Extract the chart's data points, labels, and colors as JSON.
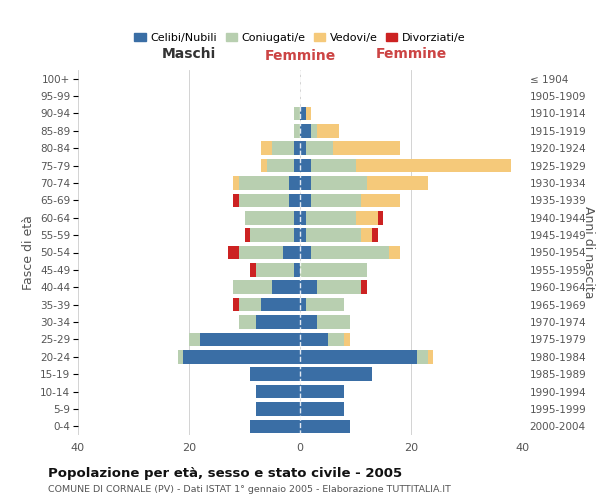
{
  "age_groups": [
    "0-4",
    "5-9",
    "10-14",
    "15-19",
    "20-24",
    "25-29",
    "30-34",
    "35-39",
    "40-44",
    "45-49",
    "50-54",
    "55-59",
    "60-64",
    "65-69",
    "70-74",
    "75-79",
    "80-84",
    "85-89",
    "90-94",
    "95-99",
    "100+"
  ],
  "birth_years": [
    "2000-2004",
    "1995-1999",
    "1990-1994",
    "1985-1989",
    "1980-1984",
    "1975-1979",
    "1970-1974",
    "1965-1969",
    "1960-1964",
    "1955-1959",
    "1950-1954",
    "1945-1949",
    "1940-1944",
    "1935-1939",
    "1930-1934",
    "1925-1929",
    "1920-1924",
    "1915-1919",
    "1910-1914",
    "1905-1909",
    "≤ 1904"
  ],
  "colors": {
    "celibi": "#3a6ea5",
    "coniugati": "#b8cfb0",
    "vedovi": "#f5c97a",
    "divorziati": "#cc2222"
  },
  "maschi": {
    "celibi": [
      9,
      8,
      8,
      9,
      21,
      18,
      8,
      7,
      5,
      1,
      3,
      1,
      1,
      2,
      2,
      1,
      1,
      0,
      0,
      0,
      0
    ],
    "coniugati": [
      0,
      0,
      0,
      0,
      1,
      2,
      3,
      4,
      7,
      7,
      8,
      8,
      9,
      9,
      9,
      5,
      4,
      1,
      1,
      0,
      0
    ],
    "vedovi": [
      0,
      0,
      0,
      0,
      0,
      0,
      0,
      0,
      0,
      0,
      0,
      0,
      0,
      0,
      1,
      1,
      2,
      0,
      0,
      0,
      0
    ],
    "divorziati": [
      0,
      0,
      0,
      0,
      0,
      0,
      0,
      1,
      0,
      1,
      2,
      1,
      0,
      1,
      0,
      0,
      0,
      0,
      0,
      0,
      0
    ]
  },
  "femmine": {
    "celibi": [
      9,
      8,
      8,
      13,
      21,
      5,
      3,
      1,
      3,
      0,
      2,
      1,
      1,
      2,
      2,
      2,
      1,
      2,
      1,
      0,
      0
    ],
    "coniugati": [
      0,
      0,
      0,
      0,
      2,
      3,
      6,
      7,
      8,
      12,
      14,
      10,
      9,
      9,
      10,
      8,
      5,
      1,
      0,
      0,
      0
    ],
    "vedovi": [
      0,
      0,
      0,
      0,
      1,
      1,
      0,
      0,
      0,
      0,
      2,
      2,
      4,
      7,
      11,
      28,
      12,
      4,
      1,
      0,
      0
    ],
    "divorziati": [
      0,
      0,
      0,
      0,
      0,
      0,
      0,
      0,
      1,
      0,
      0,
      1,
      1,
      0,
      0,
      0,
      0,
      0,
      0,
      0,
      0
    ]
  },
  "title": "Popolazione per età, sesso e stato civile - 2005",
  "subtitle": "COMUNE DI CORNALE (PV) - Dati ISTAT 1° gennaio 2005 - Elaborazione TUTTITALIA.IT",
  "xlabel_left": "Maschi",
  "xlabel_right": "Femmine",
  "ylabel_left": "Fasce di età",
  "ylabel_right": "Anni di nascita",
  "xlim": 40,
  "legend_labels": [
    "Celibi/Nubili",
    "Coniugati/e",
    "Vedovi/e",
    "Divorziati/e"
  ],
  "bg_color": "#ffffff",
  "grid_color": "#cccccc"
}
